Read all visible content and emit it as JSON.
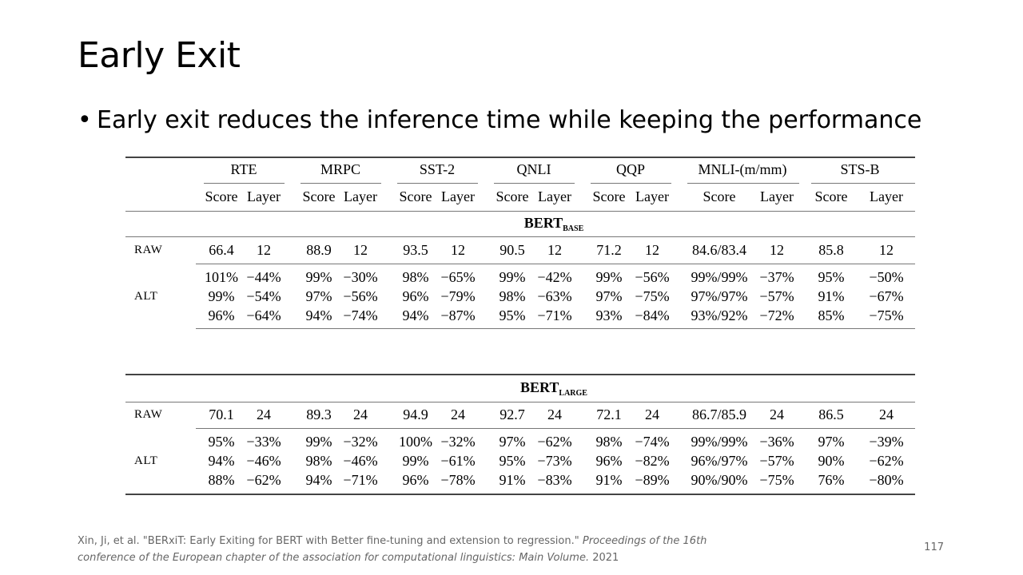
{
  "slide": {
    "title": "Early Exit",
    "bullet_marker": "•",
    "bullet": "Early exit reduces the inference time while keeping the performance",
    "page_number": "117"
  },
  "table": {
    "datasets": [
      "RTE",
      "MRPC",
      "SST-2",
      "QNLI",
      "QQP",
      "MNLI-(m/mm)",
      "STS-B"
    ],
    "sub_headers": [
      "Score",
      "Layer"
    ],
    "sections": [
      {
        "model": "BERT",
        "model_sub": "BASE",
        "rows": [
          {
            "label": "RAW",
            "cells": [
              [
                "66.4",
                "12"
              ],
              [
                "88.9",
                "12"
              ],
              [
                "93.5",
                "12"
              ],
              [
                "90.5",
                "12"
              ],
              [
                "71.2",
                "12"
              ],
              [
                "84.6/83.4",
                "12"
              ],
              [
                "85.8",
                "12"
              ]
            ]
          },
          {
            "label": "ALT",
            "cells": [
              [
                "101%",
                "−44%"
              ],
              [
                "99%",
                "−30%"
              ],
              [
                "98%",
                "−65%"
              ],
              [
                "99%",
                "−42%"
              ],
              [
                "99%",
                "−56%"
              ],
              [
                "99%/99%",
                "−37%"
              ],
              [
                "95%",
                "−50%"
              ]
            ]
          },
          {
            "label": "",
            "cells": [
              [
                "99%",
                "−54%"
              ],
              [
                "97%",
                "−56%"
              ],
              [
                "96%",
                "−79%"
              ],
              [
                "98%",
                "−63%"
              ],
              [
                "97%",
                "−75%"
              ],
              [
                "97%/97%",
                "−57%"
              ],
              [
                "91%",
                "−67%"
              ]
            ]
          },
          {
            "label": "",
            "cells": [
              [
                "96%",
                "−64%"
              ],
              [
                "94%",
                "−74%"
              ],
              [
                "94%",
                "−87%"
              ],
              [
                "95%",
                "−71%"
              ],
              [
                "93%",
                "−84%"
              ],
              [
                "93%/92%",
                "−72%"
              ],
              [
                "85%",
                "−75%"
              ]
            ]
          }
        ]
      },
      {
        "model": "BERT",
        "model_sub": "LARGE",
        "rows": [
          {
            "label": "RAW",
            "cells": [
              [
                "70.1",
                "24"
              ],
              [
                "89.3",
                "24"
              ],
              [
                "94.9",
                "24"
              ],
              [
                "92.7",
                "24"
              ],
              [
                "72.1",
                "24"
              ],
              [
                "86.7/85.9",
                "24"
              ],
              [
                "86.5",
                "24"
              ]
            ]
          },
          {
            "label": "ALT",
            "cells": [
              [
                "95%",
                "−33%"
              ],
              [
                "99%",
                "−32%"
              ],
              [
                "100%",
                "−32%"
              ],
              [
                "97%",
                "−62%"
              ],
              [
                "98%",
                "−74%"
              ],
              [
                "99%/99%",
                "−36%"
              ],
              [
                "97%",
                "−39%"
              ]
            ]
          },
          {
            "label": "",
            "cells": [
              [
                "94%",
                "−46%"
              ],
              [
                "98%",
                "−46%"
              ],
              [
                "99%",
                "−61%"
              ],
              [
                "95%",
                "−73%"
              ],
              [
                "96%",
                "−82%"
              ],
              [
                "96%/97%",
                "−57%"
              ],
              [
                "90%",
                "−62%"
              ]
            ]
          },
          {
            "label": "",
            "cells": [
              [
                "88%",
                "−62%"
              ],
              [
                "94%",
                "−71%"
              ],
              [
                "96%",
                "−78%"
              ],
              [
                "91%",
                "−83%"
              ],
              [
                "91%",
                "−89%"
              ],
              [
                "90%/90%",
                "−75%"
              ],
              [
                "76%",
                "−80%"
              ]
            ]
          }
        ]
      }
    ]
  },
  "citation": {
    "text_plain": "Xin, Ji, et al. \"BERxiT: Early Exiting for BERT with Better fine-tuning and extension to regression.\" ",
    "venue_line1": "Proceedings of the 16th",
    "venue_line2": "conference of the European chapter of the association for computational linguistics: Main Volume.",
    "year": " 2021"
  }
}
